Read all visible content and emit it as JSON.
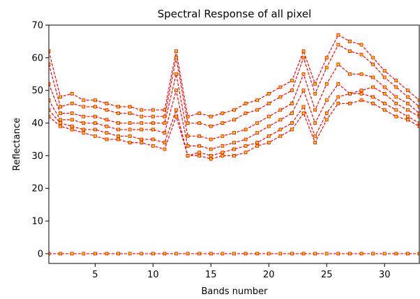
{
  "chart_data": {
    "type": "line",
    "title": "Spectral Response of all pixel",
    "xlabel": "Bands number",
    "ylabel": "Reflectance",
    "xlim": [
      1,
      33
    ],
    "ylim": [
      -3,
      70
    ],
    "xticks": [
      5,
      10,
      15,
      20,
      25,
      30
    ],
    "yticks": [
      0,
      10,
      20,
      30,
      40,
      50,
      60,
      70
    ],
    "grid": false,
    "line_color": "#ff0000",
    "marker_color": "#ffd400",
    "x": [
      1,
      2,
      3,
      4,
      5,
      6,
      7,
      8,
      9,
      10,
      11,
      12,
      13,
      14,
      15,
      16,
      17,
      18,
      19,
      20,
      21,
      22,
      23,
      24,
      25,
      26,
      27,
      28,
      29,
      30,
      31,
      32,
      33
    ],
    "series": [
      {
        "values": [
          62,
          48,
          49,
          47,
          47,
          46,
          45,
          45,
          44,
          44,
          44,
          62,
          42,
          43,
          42,
          43,
          44,
          46,
          47,
          49,
          51,
          53,
          62,
          52,
          60,
          67,
          65,
          64,
          60,
          56,
          53,
          50,
          47
        ]
      },
      {
        "values": [
          58,
          45,
          46,
          45,
          45,
          44,
          43,
          43,
          42,
          42,
          42,
          60,
          40,
          40,
          39,
          40,
          41,
          43,
          44,
          46,
          48,
          50,
          60,
          49,
          57,
          64,
          62,
          61,
          58,
          54,
          51,
          48,
          45
        ]
      },
      {
        "values": [
          52,
          43,
          43,
          42,
          42,
          41,
          40,
          40,
          40,
          40,
          40,
          55,
          36,
          36,
          35,
          36,
          37,
          38,
          40,
          42,
          44,
          46,
          55,
          44,
          52,
          58,
          55,
          55,
          54,
          51,
          48,
          46,
          43
        ]
      },
      {
        "values": [
          47,
          41,
          41,
          40,
          40,
          39,
          38,
          38,
          38,
          38,
          37,
          50,
          33,
          33,
          32,
          33,
          34,
          35,
          37,
          39,
          41,
          43,
          50,
          40,
          47,
          52,
          49,
          50,
          51,
          49,
          46,
          44,
          42
        ]
      },
      {
        "values": [
          44,
          40,
          39,
          38,
          38,
          37,
          36,
          36,
          35,
          35,
          34,
          44,
          30,
          31,
          30,
          31,
          32,
          33,
          34,
          36,
          38,
          40,
          45,
          36,
          43,
          48,
          49,
          49,
          48,
          46,
          44,
          42,
          40
        ]
      },
      {
        "values": [
          42,
          39,
          38,
          37,
          36,
          35,
          35,
          34,
          34,
          33,
          32,
          42,
          30,
          30,
          29,
          30,
          30,
          31,
          33,
          34,
          36,
          38,
          43,
          34,
          41,
          46,
          46,
          47,
          46,
          44,
          42,
          41,
          39
        ]
      },
      {
        "values": [
          0,
          0,
          0,
          0,
          0,
          0,
          0,
          0,
          0,
          0,
          0,
          0,
          0,
          0,
          0,
          0,
          0,
          0,
          0,
          0,
          0,
          0,
          0,
          0,
          0,
          0,
          0,
          0,
          0,
          0,
          0,
          0,
          0
        ]
      }
    ]
  }
}
